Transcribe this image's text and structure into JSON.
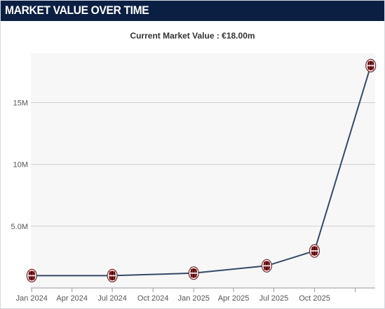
{
  "header": {
    "title": "MARKET VALUE OVER TIME"
  },
  "chart_data": {
    "type": "line",
    "title": "Current Market Value : €18.00m",
    "xlabel": "",
    "ylabel": "",
    "x_tick_labels": [
      "Jan 2024",
      "Apr 2024",
      "Jul 2024",
      "Oct 2024",
      "Jan 2025",
      "Apr 2025",
      "Jul 2025",
      "Oct 2025"
    ],
    "y_tick_labels": [
      "5.0M",
      "10M",
      "15M"
    ],
    "y_ticks": [
      5000000,
      10000000,
      15000000
    ],
    "ylim": [
      0,
      19000000
    ],
    "xlim": [
      "2023-12-30",
      "2026-02-15"
    ],
    "grid": "horizontal",
    "legend": "none",
    "marker": "club-crest-icon",
    "colors": {
      "line": "#354a66",
      "marker": "#c0161e",
      "plot_background": "#f7f7f8",
      "grid": "#cfcfd4"
    },
    "series": [
      {
        "x": [
          "2024-01-01",
          "2024-07-01",
          "2025-01-01",
          "2025-06-15",
          "2025-10-01",
          "2026-02-05"
        ],
        "values": [
          1000000,
          1000000,
          1200000,
          1800000,
          3000000,
          18000000
        ]
      }
    ]
  }
}
